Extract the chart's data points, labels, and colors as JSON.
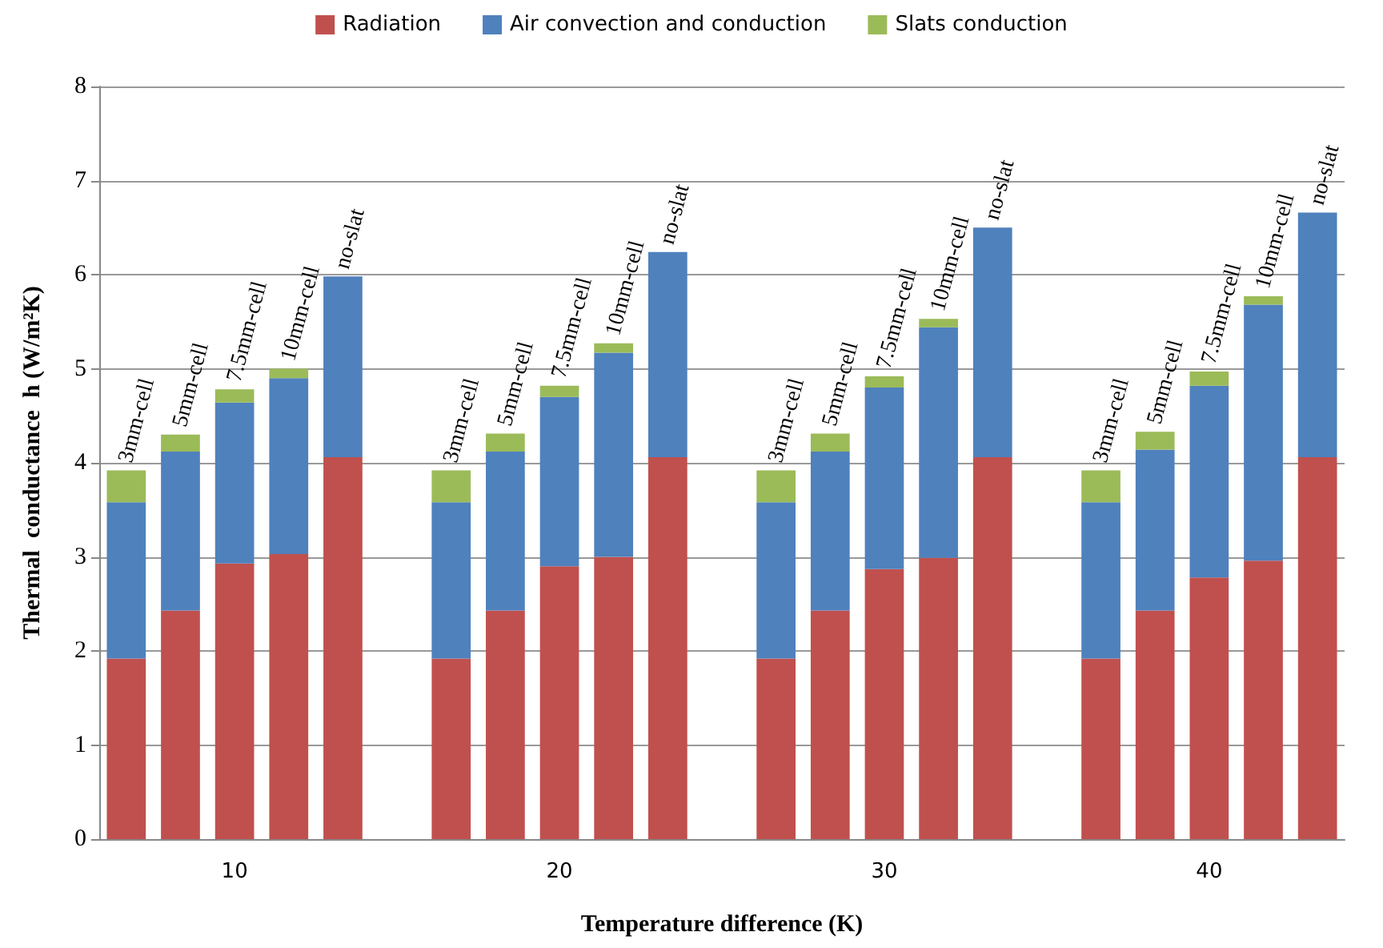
{
  "chart_data": {
    "type": "bar",
    "stacked": true,
    "xlabel": "Temperature difference (K)",
    "ylabel": "Thermal  conductance  h (W/m²K)",
    "categories": [
      "3mm-cell",
      "5mm-cell",
      "7.5mm-cell",
      "10mm-cell",
      "no-slat",
      null,
      "3mm-cell",
      "5mm-cell",
      "7.5mm-cell",
      "10mm-cell",
      "no-slat",
      null,
      "3mm-cell",
      "5mm-cell",
      "7.5mm-cell",
      "10mm-cell",
      "no-slat",
      null,
      "3mm-cell",
      "5mm-cell",
      "7.5mm-cell",
      "10mm-cell",
      "no-slat"
    ],
    "annotations": [
      "10",
      "20",
      "30",
      "40"
    ],
    "series": [
      {
        "name": "Radiation",
        "color": "#c0504d",
        "values": [
          1.92,
          2.43,
          2.93,
          3.03,
          4.06,
          null,
          1.92,
          2.43,
          2.9,
          3.0,
          4.06,
          null,
          1.92,
          2.43,
          2.87,
          2.99,
          4.06,
          null,
          1.92,
          2.43,
          2.78,
          2.96,
          4.06
        ]
      },
      {
        "name": "Air convection and conduction",
        "color": "#4f81bd",
        "values": [
          1.66,
          1.69,
          1.71,
          1.87,
          1.92,
          null,
          1.66,
          1.69,
          1.8,
          2.17,
          2.18,
          null,
          1.66,
          1.69,
          1.93,
          2.45,
          2.44,
          null,
          1.66,
          1.71,
          2.04,
          2.72,
          2.6
        ]
      },
      {
        "name": "Slats conduction",
        "color": "#9bbb59",
        "values": [
          0.34,
          0.18,
          0.14,
          0.1,
          null,
          null,
          0.34,
          0.19,
          0.12,
          0.1,
          null,
          null,
          0.34,
          0.19,
          0.12,
          0.09,
          null,
          null,
          0.34,
          0.19,
          0.15,
          0.09,
          null
        ]
      }
    ],
    "ylim": [
      0,
      8
    ],
    "yticks": [
      0,
      1,
      2,
      3,
      4,
      5,
      6,
      7,
      8
    ],
    "grid": "y",
    "legend": "top"
  }
}
